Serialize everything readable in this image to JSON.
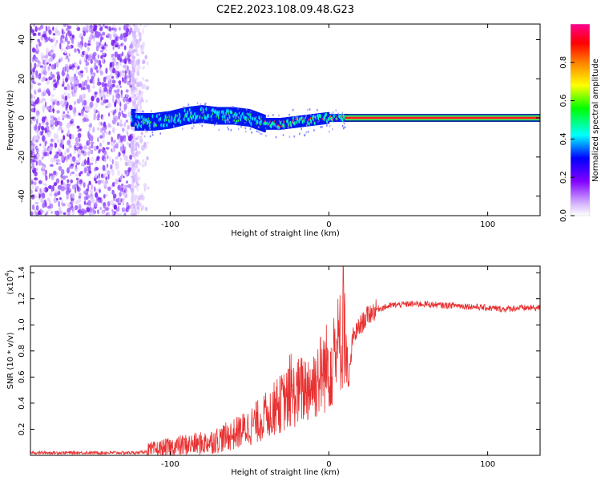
{
  "title": "C2E2.2023.108.09.48.G23",
  "chart_data": [
    {
      "type": "heatmap",
      "xlabel": "Height of straight line (km)",
      "ylabel": "Frequency (Hz)",
      "xlim": [
        -188,
        133
      ],
      "ylim": [
        -50,
        48
      ],
      "x_ticks": [
        -100,
        0,
        100
      ],
      "x_tick_labels": [
        "-100",
        "0",
        "100"
      ],
      "y_ticks": [
        -40,
        -20,
        0,
        20,
        40
      ],
      "y_tick_labels": [
        "-40",
        "-20",
        "0",
        "20",
        "40"
      ],
      "noise_region_km": [
        -188,
        -112
      ],
      "signal_trace": {
        "x": [
          -122,
          -110,
          -100,
          -90,
          -80,
          -70,
          -60,
          -50,
          -40,
          -30,
          -20,
          -10,
          0,
          10,
          133
        ],
        "y": [
          -2,
          -2,
          -1,
          1,
          2,
          1,
          1,
          0,
          -3,
          -3,
          -2,
          -1,
          0,
          0,
          0
        ]
      },
      "colorbar": {
        "label": "Normalized spectral amplitude",
        "range": [
          0.0,
          1.0
        ],
        "ticks": [
          0.0,
          0.2,
          0.4,
          0.6,
          0.8
        ],
        "tick_labels": [
          "0.0",
          "0.2",
          "0.4",
          "0.6",
          "0.8"
        ],
        "colors": [
          "#ffffff",
          "#8000ff",
          "#0000ff",
          "#00ffff",
          "#00ff00",
          "#ffff00",
          "#ff8000",
          "#ff0000",
          "#ff00a0"
        ]
      }
    },
    {
      "type": "line",
      "xlabel": "Height of straight line (km)",
      "ylabel": "SNR (10 * v/v)",
      "y_multiplier": "(x10",
      "y_multiplier_exp": "4",
      "y_multiplier_close": ")",
      "xlim": [
        -188,
        133
      ],
      "ylim": [
        0,
        1.45
      ],
      "x_ticks": [
        -100,
        0,
        100
      ],
      "x_tick_labels": [
        "-100",
        "0",
        "100"
      ],
      "y_ticks": [
        0.2,
        0.4,
        0.6,
        0.8,
        1.0,
        1.2,
        1.4
      ],
      "y_tick_labels": [
        "0.2",
        "0.4",
        "0.6",
        "0.8",
        "1.0",
        "1.2",
        "1.4"
      ],
      "line_color": "#e83030",
      "series": [
        {
          "name": "SNR",
          "x": [
            -188,
            -160,
            -140,
            -120,
            -110,
            -100,
            -90,
            -80,
            -70,
            -60,
            -50,
            -40,
            -30,
            -20,
            -10,
            0,
            5,
            8,
            10,
            12,
            15,
            20,
            25,
            30,
            40,
            50,
            60,
            70,
            80,
            90,
            100,
            110,
            120,
            133
          ],
          "y": [
            0.02,
            0.02,
            0.02,
            0.02,
            0.04,
            0.06,
            0.08,
            0.09,
            0.12,
            0.16,
            0.22,
            0.3,
            0.4,
            0.48,
            0.55,
            0.7,
            0.8,
            0.9,
            0.95,
            0.5,
            0.9,
            1.0,
            1.08,
            1.12,
            1.15,
            1.16,
            1.16,
            1.15,
            1.15,
            1.14,
            1.13,
            1.12,
            1.13,
            1.13
          ]
        }
      ]
    }
  ]
}
